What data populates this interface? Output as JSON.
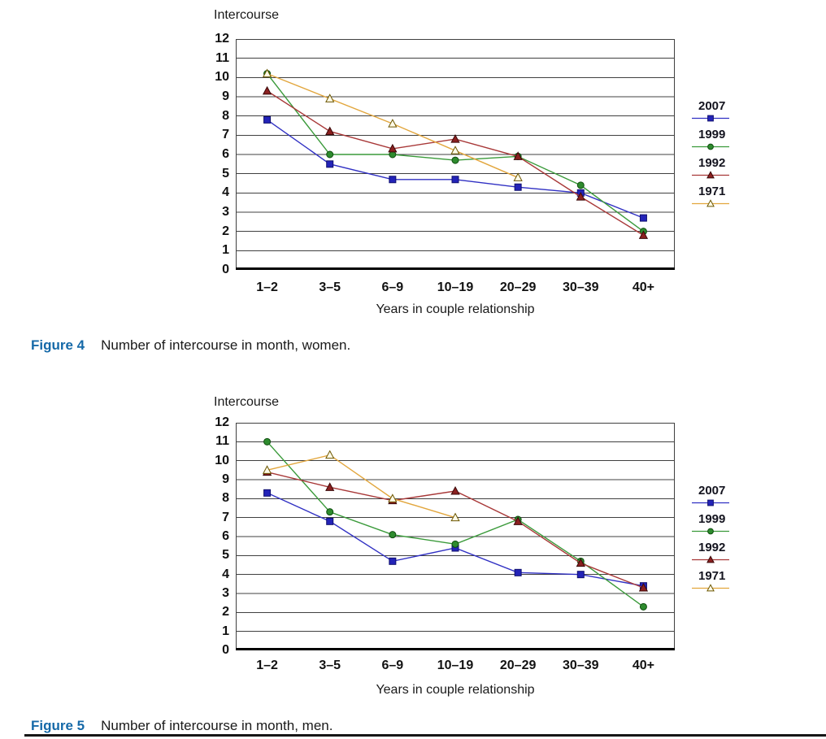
{
  "figures": [
    {
      "caption_label": "Figure 4",
      "caption_text": "Number of intercourse in month, women."
    },
    {
      "caption_label": "Figure 5",
      "caption_text": "Number of intercourse in month, men."
    }
  ],
  "colors": {
    "caption_label_blue": "#1569A8",
    "grid_line": "#404040",
    "axis_line": "#000000"
  },
  "chart_data": [
    {
      "type": "line",
      "title": "Intercourse",
      "xlabel": "Years in couple relationship",
      "ylabel": "Intercourse",
      "ylim": [
        0,
        12
      ],
      "ytick_step": 1,
      "grid": "horizontal",
      "legend_position": "right",
      "categories": [
        "1–2",
        "3–5",
        "6–9",
        "10–19",
        "20–29",
        "30–39",
        "40+"
      ],
      "series": [
        {
          "name": "2007",
          "marker": "square",
          "line_color": "#3030C3",
          "marker_fill": "#2323B8",
          "marker_stroke": "#10106E",
          "values": [
            7.8,
            5.5,
            4.7,
            4.7,
            4.3,
            4.0,
            2.7
          ]
        },
        {
          "name": "1999",
          "marker": "circle",
          "line_color": "#3A9A3A",
          "marker_fill": "#2E8B2E",
          "marker_stroke": "#0E4D0E",
          "values": [
            10.2,
            6.0,
            6.0,
            5.7,
            5.9,
            4.4,
            2.0
          ]
        },
        {
          "name": "1992",
          "marker": "triangle",
          "line_color": "#A83838",
          "marker_fill": "#8B2020",
          "marker_stroke": "#3A0808",
          "values": [
            9.3,
            7.2,
            6.3,
            6.8,
            5.9,
            3.8,
            1.8
          ]
        },
        {
          "name": "1971",
          "marker": "triangle-open",
          "line_color": "#E2A63D",
          "marker_fill": "#FFFBE8",
          "marker_stroke": "#6B5600",
          "values": [
            10.2,
            8.9,
            7.6,
            6.2,
            4.8,
            null,
            null
          ]
        }
      ]
    },
    {
      "type": "line",
      "title": "Intercourse",
      "xlabel": "Years in couple relationship",
      "ylabel": "Intercourse",
      "ylim": [
        0,
        12
      ],
      "ytick_step": 1,
      "grid": "horizontal",
      "legend_position": "right",
      "categories": [
        "1–2",
        "3–5",
        "6–9",
        "10–19",
        "20–29",
        "30–39",
        "40+"
      ],
      "series": [
        {
          "name": "2007",
          "marker": "square",
          "line_color": "#3030C3",
          "marker_fill": "#2323B8",
          "marker_stroke": "#10106E",
          "values": [
            8.3,
            6.8,
            4.7,
            5.4,
            4.1,
            4.0,
            3.4
          ]
        },
        {
          "name": "1999",
          "marker": "circle",
          "line_color": "#3A9A3A",
          "marker_fill": "#2E8B2E",
          "marker_stroke": "#0E4D0E",
          "values": [
            11.0,
            7.3,
            6.1,
            5.6,
            6.9,
            4.7,
            2.3
          ]
        },
        {
          "name": "1992",
          "marker": "triangle",
          "line_color": "#A83838",
          "marker_fill": "#8B2020",
          "marker_stroke": "#3A0808",
          "values": [
            9.4,
            8.6,
            7.9,
            8.4,
            6.8,
            4.6,
            3.3
          ]
        },
        {
          "name": "1971",
          "marker": "triangle-open",
          "line_color": "#E2A63D",
          "marker_fill": "#FFFBE8",
          "marker_stroke": "#6B5600",
          "values": [
            9.5,
            10.3,
            8.0,
            7.0,
            null,
            null,
            null
          ]
        }
      ]
    }
  ]
}
